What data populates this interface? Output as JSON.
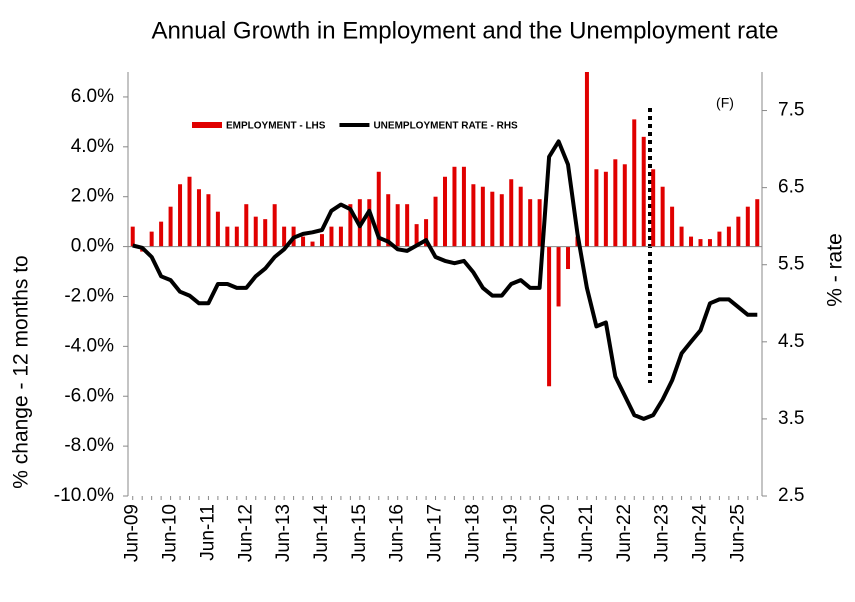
{
  "chart_data": {
    "type": "bar_line",
    "title": "Annual Growth in Employment and the Unemployment rate",
    "y_label": "% change - 12 months to",
    "y2_label": "% - rate",
    "annotation": "(F)",
    "categories": [
      "Jun-09",
      null,
      null,
      null,
      "Jun-10",
      null,
      null,
      null,
      "Jun-11",
      null,
      null,
      null,
      "Jun-12",
      null,
      null,
      null,
      "Jun-13",
      null,
      null,
      null,
      "Jun-14",
      null,
      null,
      null,
      "Jun-15",
      null,
      null,
      null,
      "Jun-16",
      null,
      null,
      null,
      "Jun-17",
      null,
      null,
      null,
      "Jun-18",
      null,
      null,
      null,
      "Jun-19",
      null,
      null,
      null,
      "Jun-20",
      null,
      null,
      null,
      "Jun-21",
      null,
      null,
      null,
      "Jun-22",
      null,
      null,
      null,
      "Jun-23",
      null,
      null,
      null,
      "Jun-24",
      null,
      null,
      null,
      "Jun-25",
      null,
      null
    ],
    "series": [
      {
        "name": "EMPLOYMENT -  LHS",
        "type": "bar",
        "color": "#e00000",
        "values": [
          0.8,
          -0.2,
          0.6,
          1.0,
          1.6,
          2.5,
          2.8,
          2.3,
          2.1,
          1.4,
          0.8,
          0.8,
          1.7,
          1.2,
          1.1,
          1.7,
          0.8,
          0.8,
          0.4,
          0.2,
          0.5,
          0.8,
          0.8,
          1.7,
          1.9,
          1.9,
          3.0,
          2.1,
          1.7,
          1.7,
          0.9,
          1.1,
          2.0,
          2.8,
          3.2,
          3.2,
          2.5,
          2.4,
          2.2,
          2.1,
          2.7,
          2.4,
          1.9,
          1.9,
          -5.6,
          -2.4,
          -0.9,
          0.4,
          7.2,
          3.1,
          3.0,
          3.5,
          3.3,
          5.1,
          4.4,
          3.1,
          2.4,
          1.6,
          0.8,
          0.4,
          0.3,
          0.3,
          0.6,
          0.8,
          1.2,
          1.6,
          1.9
        ]
      },
      {
        "name": "UNEMPLOYMENT RATE - RHS",
        "type": "line",
        "axis": "y2",
        "color": "#000000",
        "values": [
          5.75,
          5.72,
          5.6,
          5.35,
          5.3,
          5.15,
          5.1,
          5.0,
          5.0,
          5.25,
          5.25,
          5.2,
          5.2,
          5.35,
          5.45,
          5.6,
          5.7,
          5.85,
          5.9,
          5.92,
          5.95,
          6.2,
          6.28,
          6.22,
          6.0,
          6.2,
          5.85,
          5.8,
          5.7,
          5.68,
          5.75,
          5.82,
          5.6,
          5.55,
          5.52,
          5.55,
          5.4,
          5.2,
          5.1,
          5.1,
          5.25,
          5.3,
          5.2,
          5.2,
          6.9,
          7.1,
          6.8,
          5.9,
          5.2,
          4.7,
          4.75,
          4.05,
          3.8,
          3.55,
          3.5,
          3.55,
          3.75,
          4.0,
          4.35,
          4.5,
          4.65,
          5.0,
          5.05,
          5.05,
          4.95,
          4.85,
          4.85
        ]
      }
    ],
    "ylim": [
      -10,
      7
    ],
    "yticks": [
      {
        "value": -10,
        "label": "-10.0%"
      },
      {
        "value": -8,
        "label": "-8.0%"
      },
      {
        "value": -6,
        "label": "-6.0%"
      },
      {
        "value": -4,
        "label": "-4.0%"
      },
      {
        "value": -2,
        "label": "-2.0%"
      },
      {
        "value": 0,
        "label": "0.0%"
      },
      {
        "value": 2,
        "label": "2.0%"
      },
      {
        "value": 4,
        "label": "4.0%"
      },
      {
        "value": 6,
        "label": "6.0%"
      }
    ],
    "y2lim": [
      2.5,
      8.0
    ],
    "y2ticks": [
      2.5,
      3.5,
      4.5,
      5.5,
      6.5,
      7.5
    ],
    "legend": "top-left"
  }
}
